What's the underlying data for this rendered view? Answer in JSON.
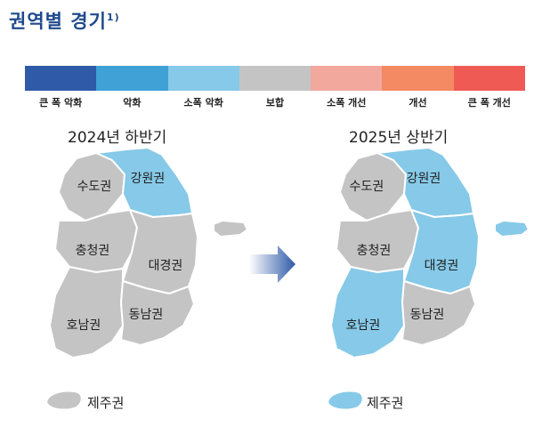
{
  "title": "권역별 경기",
  "title_note": "1)",
  "legend": [
    {
      "label": "큰 폭 악화",
      "color": "#2e5aa8"
    },
    {
      "label": "악화",
      "color": "#3fa1d6"
    },
    {
      "label": "소폭 악화",
      "color": "#86c9e8"
    },
    {
      "label": "보합",
      "color": "#c4c4c4"
    },
    {
      "label": "소폭 개선",
      "color": "#f2a89d"
    },
    {
      "label": "개선",
      "color": "#f48a63"
    },
    {
      "label": "큰 폭 개선",
      "color": "#ef5a55"
    }
  ],
  "maps": [
    {
      "period": "2024년 하반기",
      "regions": {
        "sudo": {
          "label": "수도권",
          "status": "보합"
        },
        "gangwon": {
          "label": "강원권",
          "status": "소폭 악화"
        },
        "chungcheong": {
          "label": "충청권",
          "status": "보합"
        },
        "daegyeong": {
          "label": "대경권",
          "status": "보합"
        },
        "honam": {
          "label": "호남권",
          "status": "보합"
        },
        "dongnam": {
          "label": "동남권",
          "status": "보합"
        },
        "jeju": {
          "label": "제주권",
          "status": "보합"
        }
      }
    },
    {
      "period": "2025년 상반기",
      "regions": {
        "sudo": {
          "label": "수도권",
          "status": "보합"
        },
        "gangwon": {
          "label": "강원권",
          "status": "소폭 악화"
        },
        "chungcheong": {
          "label": "충청권",
          "status": "보합"
        },
        "daegyeong": {
          "label": "대경권",
          "status": "소폭 악화"
        },
        "honam": {
          "label": "호남권",
          "status": "소폭 악화"
        },
        "dongnam": {
          "label": "동남권",
          "status": "보합"
        },
        "jeju": {
          "label": "제주권",
          "status": "소폭 악화"
        }
      }
    }
  ],
  "arrow_icon": "right-arrow-icon"
}
